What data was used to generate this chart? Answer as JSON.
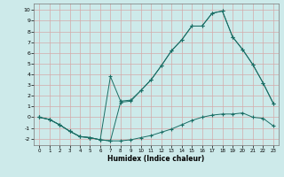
{
  "xlabel": "Humidex (Indice chaleur)",
  "background_color": "#cdeaea",
  "grid_color": "#d4aaaa",
  "line_color": "#1a6e65",
  "xlim": [
    -0.5,
    23.5
  ],
  "ylim": [
    -2.6,
    10.6
  ],
  "xticks": [
    0,
    1,
    2,
    3,
    4,
    5,
    6,
    7,
    8,
    9,
    10,
    11,
    12,
    13,
    14,
    15,
    16,
    17,
    18,
    19,
    20,
    21,
    22,
    23
  ],
  "yticks": [
    -2,
    -1,
    0,
    1,
    2,
    3,
    4,
    5,
    6,
    7,
    8,
    9,
    10
  ],
  "line1_x": [
    0,
    1,
    2,
    3,
    4,
    5,
    6,
    7,
    8,
    9,
    10,
    11,
    12,
    13,
    14,
    15,
    16,
    17,
    18,
    19,
    20,
    21,
    22,
    23
  ],
  "line1_y": [
    0,
    -0.2,
    -0.7,
    -1.3,
    -1.8,
    -1.9,
    -2.1,
    -2.2,
    -2.2,
    -2.1,
    -1.9,
    -1.7,
    -1.4,
    -1.1,
    -0.7,
    -0.3,
    0.0,
    0.2,
    0.3,
    0.3,
    0.4,
    0.0,
    -0.1,
    -0.8
  ],
  "line2_x": [
    0,
    1,
    2,
    3,
    4,
    5,
    6,
    7,
    8,
    9,
    10,
    11,
    12,
    13,
    14,
    15,
    16,
    17,
    18,
    19,
    20,
    21,
    22,
    23
  ],
  "line2_y": [
    0,
    -0.2,
    -0.7,
    -1.3,
    -1.8,
    -1.9,
    -2.1,
    -2.2,
    1.4,
    1.5,
    2.5,
    3.5,
    4.8,
    6.2,
    7.2,
    8.5,
    8.5,
    9.7,
    9.9,
    7.5,
    6.3,
    4.9,
    3.2,
    1.3
  ],
  "line3_x": [
    0,
    1,
    2,
    3,
    4,
    5,
    6,
    7,
    8,
    9,
    10,
    11,
    12,
    13,
    14,
    15,
    16,
    17,
    18,
    19,
    20,
    21,
    22,
    23
  ],
  "line3_y": [
    0,
    -0.2,
    -0.7,
    -1.3,
    -1.8,
    -1.9,
    -2.1,
    3.8,
    1.5,
    1.6,
    2.5,
    3.5,
    4.8,
    6.2,
    7.2,
    8.5,
    8.5,
    9.7,
    9.9,
    7.5,
    6.3,
    4.9,
    3.2,
    1.3
  ]
}
